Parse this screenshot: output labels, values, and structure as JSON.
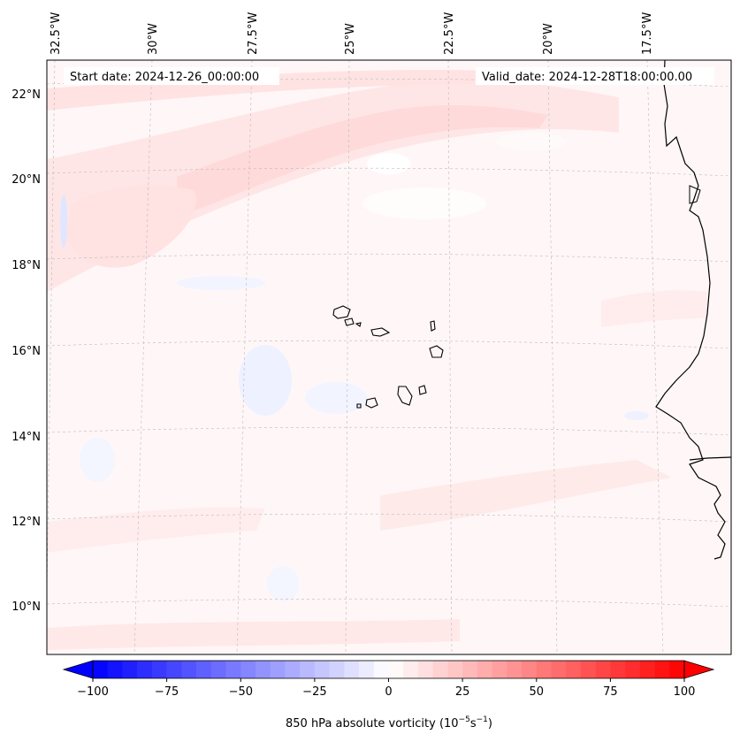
{
  "map": {
    "start_date": "Start date: 2024-12-26_00:00:00",
    "valid_date": "Valid_date: 2024-12-28T18:00:00.00",
    "lon_labels": [
      "32.5°W",
      "30°W",
      "27.5°W",
      "25°W",
      "22.5°W",
      "20°W",
      "17.5°W"
    ],
    "lat_labels": [
      "22°N",
      "20°N",
      "18°N",
      "16°N",
      "14°N",
      "12°N",
      "10°N"
    ],
    "field_colors": {
      "background": "#fff7f7",
      "light_pink": "#ffe6e6",
      "mid_pink": "#ffdada",
      "light_blue": "#eef1ff",
      "white": "#ffffff"
    },
    "coastline_color": "#000000",
    "gridline_color": "#bbbbbb"
  },
  "colorbar": {
    "label_prefix": "850 hPa absolute vorticity (10",
    "label_exp1": "−5",
    "label_mid": "s",
    "label_exp2": "−1",
    "label_suffix": ")",
    "min": -100,
    "max": 100,
    "step": 5,
    "ticks": [
      "−100",
      "−75",
      "−50",
      "−25",
      "0",
      "25",
      "50",
      "75",
      "100"
    ],
    "colormap": "bwr"
  }
}
